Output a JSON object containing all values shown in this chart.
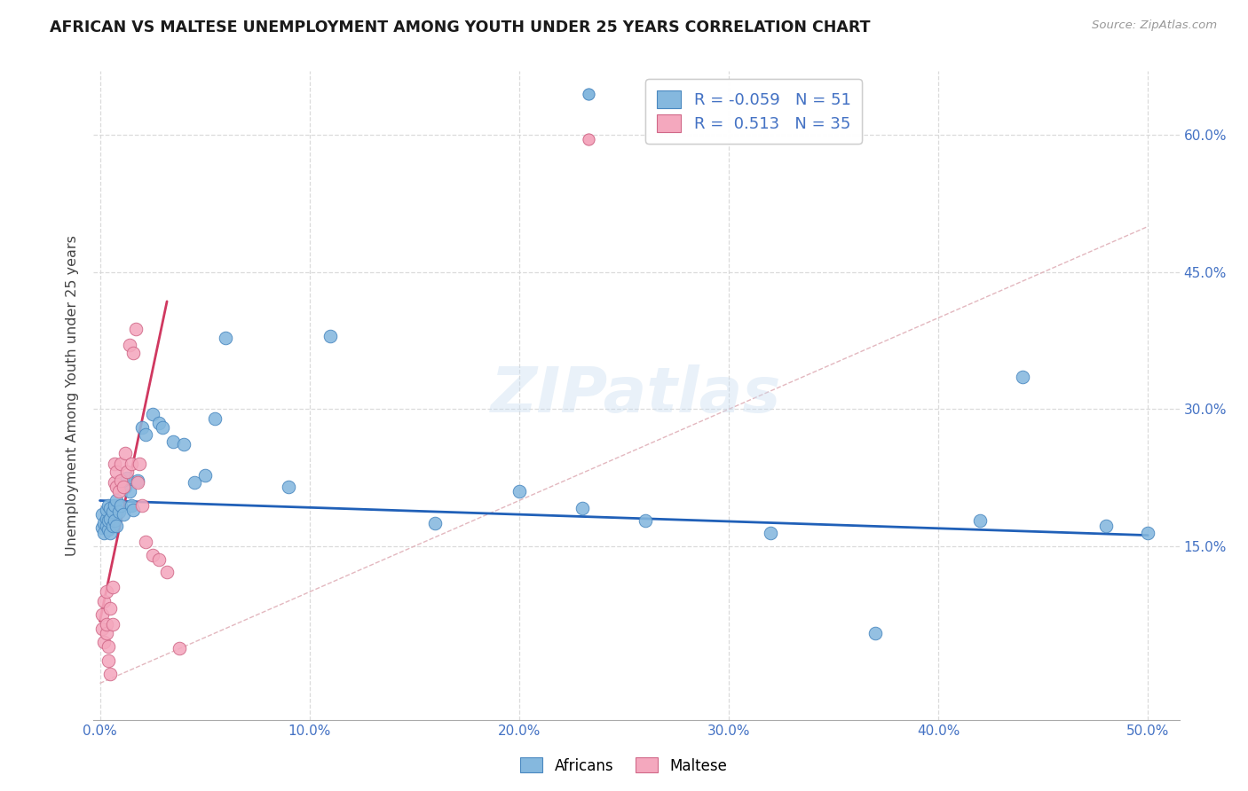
{
  "title": "AFRICAN VS MALTESE UNEMPLOYMENT AMONG YOUTH UNDER 25 YEARS CORRELATION CHART",
  "source": "Source: ZipAtlas.com",
  "ylabel": "Unemployment Among Youth under 25 years",
  "xlim": [
    -0.003,
    0.515
  ],
  "ylim": [
    -0.04,
    0.67
  ],
  "xticks": [
    0.0,
    0.1,
    0.2,
    0.3,
    0.4,
    0.5
  ],
  "yticks": [
    0.15,
    0.3,
    0.45,
    0.6
  ],
  "ytick_labels": [
    "15.0%",
    "30.0%",
    "45.0%",
    "60.0%"
  ],
  "xtick_labels": [
    "0.0%",
    "10.0%",
    "20.0%",
    "30.0%",
    "40.0%",
    "50.0%"
  ],
  "africans_x": [
    0.001,
    0.001,
    0.002,
    0.002,
    0.003,
    0.003,
    0.003,
    0.004,
    0.004,
    0.004,
    0.005,
    0.005,
    0.005,
    0.006,
    0.006,
    0.007,
    0.007,
    0.008,
    0.008,
    0.009,
    0.01,
    0.011,
    0.012,
    0.013,
    0.014,
    0.015,
    0.016,
    0.018,
    0.02,
    0.022,
    0.025,
    0.028,
    0.03,
    0.035,
    0.04,
    0.045,
    0.05,
    0.055,
    0.06,
    0.09,
    0.11,
    0.16,
    0.2,
    0.23,
    0.26,
    0.32,
    0.37,
    0.42,
    0.44,
    0.48,
    0.5
  ],
  "africans_y": [
    0.17,
    0.185,
    0.175,
    0.165,
    0.18,
    0.172,
    0.19,
    0.168,
    0.178,
    0.195,
    0.165,
    0.18,
    0.192,
    0.172,
    0.188,
    0.178,
    0.195,
    0.172,
    0.2,
    0.188,
    0.195,
    0.185,
    0.215,
    0.225,
    0.21,
    0.195,
    0.19,
    0.222,
    0.28,
    0.272,
    0.295,
    0.285,
    0.28,
    0.265,
    0.262,
    0.22,
    0.228,
    0.29,
    0.378,
    0.215,
    0.38,
    0.175,
    0.21,
    0.192,
    0.178,
    0.165,
    0.055,
    0.178,
    0.335,
    0.172,
    0.165
  ],
  "maltese_x": [
    0.001,
    0.001,
    0.002,
    0.002,
    0.003,
    0.003,
    0.003,
    0.004,
    0.004,
    0.005,
    0.005,
    0.006,
    0.006,
    0.007,
    0.007,
    0.008,
    0.008,
    0.009,
    0.01,
    0.01,
    0.011,
    0.012,
    0.013,
    0.014,
    0.015,
    0.016,
    0.017,
    0.018,
    0.019,
    0.02,
    0.022,
    0.025,
    0.028,
    0.032,
    0.038
  ],
  "maltese_y": [
    0.075,
    0.06,
    0.09,
    0.045,
    0.1,
    0.055,
    0.065,
    0.04,
    0.025,
    0.01,
    0.082,
    0.065,
    0.105,
    0.22,
    0.24,
    0.215,
    0.232,
    0.21,
    0.222,
    0.24,
    0.215,
    0.252,
    0.232,
    0.37,
    0.24,
    0.362,
    0.388,
    0.22,
    0.24,
    0.195,
    0.155,
    0.14,
    0.135,
    0.122,
    0.038
  ],
  "africans_color": "#85b8de",
  "maltese_color": "#f4a8be",
  "africans_edge": "#4a88c0",
  "maltese_edge": "#d06888",
  "blue_line_x": [
    0.0,
    0.5
  ],
  "blue_line_y": [
    0.2,
    0.162
  ],
  "pink_line_x": [
    0.0,
    0.032
  ],
  "pink_line_y": [
    0.068,
    0.418
  ],
  "diag_line_color": "#e0b0b8",
  "blue_line_color": "#2060b8",
  "pink_line_color": "#d03860",
  "background_color": "#ffffff",
  "watermark": "ZIPatlas",
  "r_african": -0.059,
  "n_african": 51,
  "r_maltese": 0.513,
  "n_maltese": 35,
  "grid_color": "#d8d8d8"
}
